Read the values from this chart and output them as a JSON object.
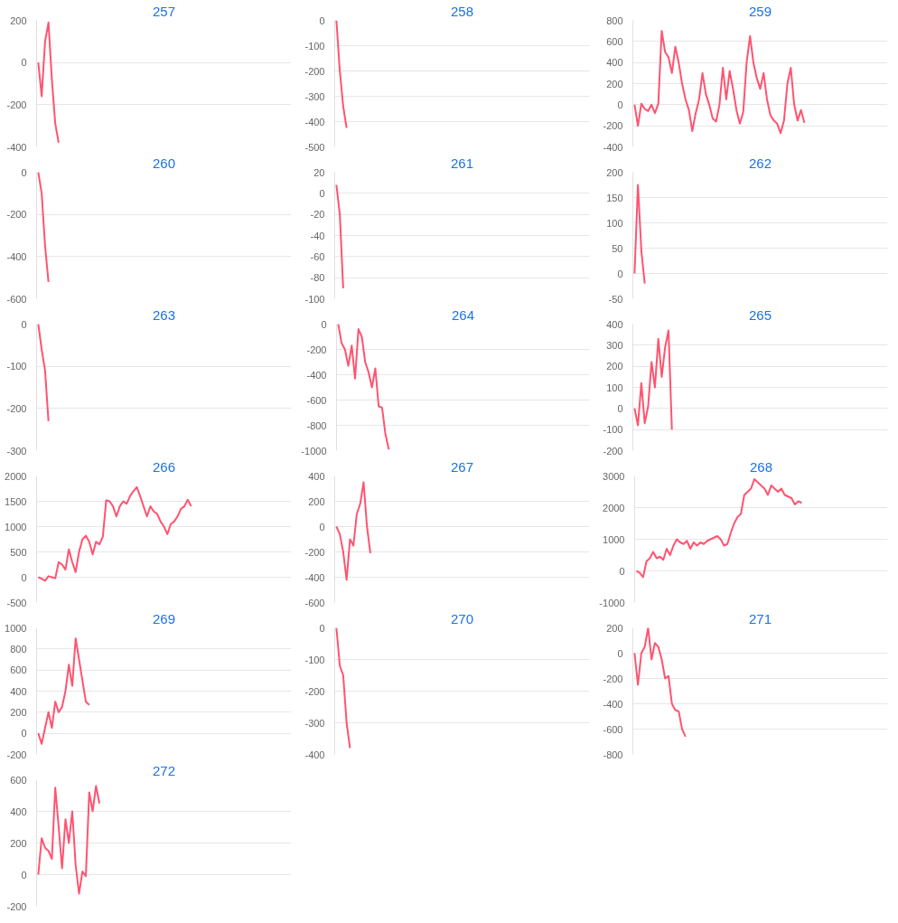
{
  "chart_data": [
    {
      "type": "line",
      "title": "257",
      "color": "#ff5470",
      "grid": "y",
      "tick_labels": "y",
      "ylim": [
        -400,
        200
      ],
      "yticks": [
        -400,
        -200,
        0,
        200
      ],
      "categories": [
        null,
        null,
        null,
        null,
        null,
        null,
        null,
        null,
        null,
        null,
        null,
        null,
        null,
        null,
        null,
        null,
        null,
        null,
        null,
        null,
        null,
        null,
        null,
        null,
        null,
        null,
        null,
        null,
        null,
        null,
        null,
        null,
        null,
        null,
        null,
        null,
        null,
        null,
        null,
        null,
        null,
        null,
        null,
        null,
        null,
        null,
        null,
        null,
        null,
        null,
        null,
        null,
        null,
        null,
        null,
        null,
        null,
        null,
        null,
        null,
        null,
        null,
        null,
        null,
        null,
        null,
        null,
        null,
        null,
        null,
        null,
        null,
        null,
        null,
        null
      ],
      "values": [
        0,
        -160,
        100,
        190,
        -80,
        -290,
        -380,
        null,
        null,
        null,
        null,
        null,
        null,
        null,
        null,
        null,
        null,
        null,
        null,
        null,
        null,
        null,
        null,
        null,
        null,
        null,
        null,
        null,
        null,
        null,
        null,
        null,
        null,
        null,
        null,
        null,
        null,
        null,
        null,
        null,
        null,
        null,
        null,
        null,
        null,
        null,
        null,
        null,
        null,
        null,
        null,
        null,
        null,
        null,
        null,
        null,
        null,
        null,
        null,
        null,
        null,
        null,
        null,
        null,
        null,
        null,
        null,
        null,
        null,
        null,
        null,
        null,
        null,
        null,
        null
      ]
    },
    {
      "type": "line",
      "title": "258",
      "color": "#ff5470",
      "grid": "y",
      "tick_labels": "y",
      "ylim": [
        -500,
        0
      ],
      "yticks": [
        -500,
        -400,
        -300,
        -200,
        -100,
        0
      ],
      "categories": [
        null,
        null,
        null,
        null,
        null,
        null,
        null,
        null,
        null,
        null,
        null,
        null,
        null,
        null,
        null,
        null,
        null,
        null,
        null,
        null,
        null,
        null,
        null,
        null,
        null,
        null,
        null,
        null,
        null,
        null,
        null,
        null,
        null,
        null,
        null,
        null,
        null,
        null,
        null,
        null,
        null,
        null,
        null,
        null,
        null,
        null,
        null,
        null,
        null,
        null,
        null,
        null,
        null,
        null,
        null,
        null,
        null,
        null,
        null,
        null,
        null,
        null,
        null,
        null,
        null,
        null,
        null,
        null,
        null,
        null,
        null,
        null,
        null,
        null,
        null
      ],
      "values": [
        0,
        -200,
        -340,
        -425,
        null,
        null,
        null,
        null,
        null,
        null,
        null,
        null,
        null,
        null,
        null,
        null,
        null,
        null,
        null,
        null,
        null,
        null,
        null,
        null,
        null,
        null,
        null,
        null,
        null,
        null,
        null,
        null,
        null,
        null,
        null,
        null,
        null,
        null,
        null,
        null,
        null,
        null,
        null,
        null,
        null,
        null,
        null,
        null,
        null,
        null,
        null,
        null,
        null,
        null,
        null,
        null,
        null,
        null,
        null,
        null,
        null,
        null,
        null,
        null,
        null,
        null,
        null,
        null,
        null,
        null,
        null,
        null,
        null,
        null,
        null
      ]
    },
    {
      "type": "line",
      "title": "259",
      "color": "#ff5470",
      "grid": "y",
      "tick_labels": "y",
      "ylim": [
        -400,
        800
      ],
      "yticks": [
        -400,
        -200,
        0,
        200,
        400,
        600,
        800
      ],
      "categories": [
        null,
        null,
        null,
        null,
        null,
        null,
        null,
        null,
        null,
        null,
        null,
        null,
        null,
        null,
        null,
        null,
        null,
        null,
        null,
        null,
        null,
        null,
        null,
        null,
        null,
        null,
        null,
        null,
        null,
        null,
        null,
        null,
        null,
        null,
        null,
        null,
        null,
        null,
        null,
        null,
        null,
        null,
        null,
        null,
        null,
        null,
        null,
        null,
        null,
        null,
        null,
        null,
        null,
        null,
        null,
        null,
        null,
        null,
        null,
        null,
        null,
        null,
        null,
        null,
        null,
        null,
        null,
        null,
        null,
        null,
        null,
        null,
        null,
        null,
        null
      ],
      "values": [
        0,
        -200,
        10,
        -40,
        -60,
        0,
        -80,
        10,
        700,
        500,
        450,
        300,
        550,
        400,
        200,
        50,
        -50,
        -250,
        -80,
        50,
        300,
        100,
        0,
        -130,
        -160,
        0,
        350,
        50,
        320,
        150,
        -50,
        -180,
        -70,
        400,
        650,
        400,
        250,
        150,
        300,
        50,
        -100,
        -150,
        -180,
        -270,
        -150,
        200,
        350,
        0,
        -150,
        -50,
        -170,
        null,
        null,
        null,
        null,
        null,
        null,
        null,
        null,
        null,
        null,
        null,
        null,
        null,
        null,
        null,
        null,
        null,
        null,
        null,
        null,
        null,
        null,
        null,
        null
      ]
    },
    {
      "type": "line",
      "title": "260",
      "color": "#ff5470",
      "grid": "y",
      "tick_labels": "y",
      "ylim": [
        -600,
        0
      ],
      "yticks": [
        -600,
        -400,
        -200,
        0
      ],
      "categories": [
        null,
        null,
        null,
        null,
        null,
        null,
        null,
        null,
        null,
        null,
        null,
        null,
        null,
        null,
        null,
        null,
        null,
        null,
        null,
        null,
        null,
        null,
        null,
        null,
        null,
        null,
        null,
        null,
        null,
        null,
        null,
        null,
        null,
        null,
        null,
        null,
        null,
        null,
        null,
        null,
        null,
        null,
        null,
        null,
        null,
        null,
        null,
        null,
        null,
        null,
        null,
        null,
        null,
        null,
        null,
        null,
        null,
        null,
        null,
        null,
        null,
        null,
        null,
        null,
        null,
        null,
        null,
        null,
        null,
        null,
        null,
        null,
        null,
        null,
        null
      ],
      "values": [
        0,
        -100,
        -350,
        -520,
        null,
        null,
        null,
        null,
        null,
        null,
        null,
        null,
        null,
        null,
        null,
        null,
        null,
        null,
        null,
        null,
        null,
        null,
        null,
        null,
        null,
        null,
        null,
        null,
        null,
        null,
        null,
        null,
        null,
        null,
        null,
        null,
        null,
        null,
        null,
        null,
        null,
        null,
        null,
        null,
        null,
        null,
        null,
        null,
        null,
        null,
        null,
        null,
        null,
        null,
        null,
        null,
        null,
        null,
        null,
        null,
        null,
        null,
        null,
        null,
        null,
        null,
        null,
        null,
        null,
        null,
        null,
        null,
        null,
        null,
        null
      ]
    },
    {
      "type": "line",
      "title": "261",
      "color": "#ff5470",
      "grid": "y",
      "tick_labels": "y",
      "ylim": [
        -100,
        20
      ],
      "yticks": [
        -100,
        -80,
        -60,
        -40,
        -20,
        0,
        20
      ],
      "categories": [
        null,
        null,
        null,
        null,
        null,
        null,
        null,
        null,
        null,
        null,
        null,
        null,
        null,
        null,
        null,
        null,
        null,
        null,
        null,
        null,
        null,
        null,
        null,
        null,
        null,
        null,
        null,
        null,
        null,
        null,
        null,
        null,
        null,
        null,
        null,
        null,
        null,
        null,
        null,
        null,
        null,
        null,
        null,
        null,
        null,
        null,
        null,
        null,
        null,
        null,
        null,
        null,
        null,
        null,
        null,
        null,
        null,
        null,
        null,
        null,
        null,
        null,
        null,
        null,
        null,
        null,
        null,
        null,
        null,
        null,
        null,
        null,
        null,
        null,
        null
      ],
      "values": [
        8,
        -20,
        -90,
        null,
        null,
        null,
        null,
        null,
        null,
        null,
        null,
        null,
        null,
        null,
        null,
        null,
        null,
        null,
        null,
        null,
        null,
        null,
        null,
        null,
        null,
        null,
        null,
        null,
        null,
        null,
        null,
        null,
        null,
        null,
        null,
        null,
        null,
        null,
        null,
        null,
        null,
        null,
        null,
        null,
        null,
        null,
        null,
        null,
        null,
        null,
        null,
        null,
        null,
        null,
        null,
        null,
        null,
        null,
        null,
        null,
        null,
        null,
        null,
        null,
        null,
        null,
        null,
        null,
        null,
        null,
        null,
        null,
        null,
        null,
        null
      ]
    },
    {
      "type": "line",
      "title": "262",
      "color": "#ff5470",
      "grid": "y",
      "tick_labels": "y",
      "ylim": [
        -50,
        200
      ],
      "yticks": [
        -50,
        0,
        50,
        100,
        150,
        200
      ],
      "categories": [
        null,
        null,
        null,
        null,
        null,
        null,
        null,
        null,
        null,
        null,
        null,
        null,
        null,
        null,
        null,
        null,
        null,
        null,
        null,
        null,
        null,
        null,
        null,
        null,
        null,
        null,
        null,
        null,
        null,
        null,
        null,
        null,
        null,
        null,
        null,
        null,
        null,
        null,
        null,
        null,
        null,
        null,
        null,
        null,
        null,
        null,
        null,
        null,
        null,
        null,
        null,
        null,
        null,
        null,
        null,
        null,
        null,
        null,
        null,
        null,
        null,
        null,
        null,
        null,
        null,
        null,
        null,
        null,
        null,
        null,
        null,
        null,
        null,
        null,
        null
      ],
      "values": [
        0,
        175,
        45,
        -20,
        null,
        null,
        null,
        null,
        null,
        null,
        null,
        null,
        null,
        null,
        null,
        null,
        null,
        null,
        null,
        null,
        null,
        null,
        null,
        null,
        null,
        null,
        null,
        null,
        null,
        null,
        null,
        null,
        null,
        null,
        null,
        null,
        null,
        null,
        null,
        null,
        null,
        null,
        null,
        null,
        null,
        null,
        null,
        null,
        null,
        null,
        null,
        null,
        null,
        null,
        null,
        null,
        null,
        null,
        null,
        null,
        null,
        null,
        null,
        null,
        null,
        null,
        null,
        null,
        null,
        null,
        null,
        null,
        null,
        null,
        null
      ]
    },
    {
      "type": "line",
      "title": "263",
      "color": "#ff5470",
      "grid": "y",
      "tick_labels": "y",
      "ylim": [
        -300,
        0
      ],
      "yticks": [
        -300,
        -200,
        -100,
        0
      ],
      "categories": [
        null,
        null,
        null,
        null,
        null,
        null,
        null,
        null,
        null,
        null,
        null,
        null,
        null,
        null,
        null,
        null,
        null,
        null,
        null,
        null,
        null,
        null,
        null,
        null,
        null,
        null,
        null,
        null,
        null,
        null,
        null,
        null,
        null,
        null,
        null,
        null,
        null,
        null,
        null,
        null,
        null,
        null,
        null,
        null,
        null,
        null,
        null,
        null,
        null,
        null,
        null,
        null,
        null,
        null,
        null,
        null,
        null,
        null,
        null,
        null,
        null,
        null,
        null,
        null,
        null,
        null,
        null,
        null,
        null,
        null,
        null,
        null,
        null,
        null,
        null
      ],
      "values": [
        0,
        -60,
        -110,
        -230,
        null,
        null,
        null,
        null,
        null,
        null,
        null,
        null,
        null,
        null,
        null,
        null,
        null,
        null,
        null,
        null,
        null,
        null,
        null,
        null,
        null,
        null,
        null,
        null,
        null,
        null,
        null,
        null,
        null,
        null,
        null,
        null,
        null,
        null,
        null,
        null,
        null,
        null,
        null,
        null,
        null,
        null,
        null,
        null,
        null,
        null,
        null,
        null,
        null,
        null,
        null,
        null,
        null,
        null,
        null,
        null,
        null,
        null,
        null,
        null,
        null,
        null,
        null,
        null,
        null,
        null,
        null,
        null,
        null,
        null,
        null
      ]
    },
    {
      "type": "line",
      "title": "264",
      "color": "#ff5470",
      "grid": "y",
      "tick_labels": "y",
      "ylim": [
        -1000,
        0
      ],
      "yticks": [
        -1000,
        -800,
        -600,
        -400,
        -200,
        0
      ],
      "categories": [
        null,
        null,
        null,
        null,
        null,
        null,
        null,
        null,
        null,
        null,
        null,
        null,
        null,
        null,
        null,
        null,
        null,
        null,
        null,
        null,
        null,
        null,
        null,
        null,
        null,
        null,
        null,
        null,
        null,
        null,
        null,
        null,
        null,
        null,
        null,
        null,
        null,
        null,
        null,
        null,
        null,
        null,
        null,
        null,
        null,
        null,
        null,
        null,
        null,
        null,
        null,
        null,
        null,
        null,
        null,
        null,
        null,
        null,
        null,
        null,
        null,
        null,
        null,
        null,
        null,
        null,
        null,
        null,
        null,
        null,
        null,
        null,
        null,
        null,
        null
      ],
      "values": [
        0,
        -150,
        -200,
        -330,
        -170,
        -430,
        -40,
        -100,
        -300,
        -380,
        -500,
        -350,
        -650,
        -660,
        -870,
        -990,
        null,
        null,
        null,
        null,
        null,
        null,
        null,
        null,
        null,
        null,
        null,
        null,
        null,
        null,
        null,
        null,
        null,
        null,
        null,
        null,
        null,
        null,
        null,
        null,
        null,
        null,
        null,
        null,
        null,
        null,
        null,
        null,
        null,
        null,
        null,
        null,
        null,
        null,
        null,
        null,
        null,
        null,
        null,
        null,
        null,
        null,
        null,
        null,
        null,
        null,
        null,
        null,
        null,
        null,
        null,
        null,
        null,
        null,
        null
      ]
    },
    {
      "type": "line",
      "title": "265",
      "color": "#ff5470",
      "grid": "y",
      "tick_labels": "y",
      "ylim": [
        -200,
        400
      ],
      "yticks": [
        -200,
        -100,
        0,
        100,
        200,
        300,
        400
      ],
      "categories": [
        null,
        null,
        null,
        null,
        null,
        null,
        null,
        null,
        null,
        null,
        null,
        null,
        null,
        null,
        null,
        null,
        null,
        null,
        null,
        null,
        null,
        null,
        null,
        null,
        null,
        null,
        null,
        null,
        null,
        null,
        null,
        null,
        null,
        null,
        null,
        null,
        null,
        null,
        null,
        null,
        null,
        null,
        null,
        null,
        null,
        null,
        null,
        null,
        null,
        null,
        null,
        null,
        null,
        null,
        null,
        null,
        null,
        null,
        null,
        null,
        null,
        null,
        null,
        null,
        null,
        null,
        null,
        null,
        null,
        null,
        null,
        null,
        null,
        null,
        null
      ],
      "values": [
        0,
        -80,
        120,
        -70,
        10,
        220,
        100,
        330,
        150,
        290,
        370,
        -100,
        null,
        null,
        null,
        null,
        null,
        null,
        null,
        null,
        null,
        null,
        null,
        null,
        null,
        null,
        null,
        null,
        null,
        null,
        null,
        null,
        null,
        null,
        null,
        null,
        null,
        null,
        null,
        null,
        null,
        null,
        null,
        null,
        null,
        null,
        null,
        null,
        null,
        null,
        null,
        null,
        null,
        null,
        null,
        null,
        null,
        null,
        null,
        null,
        null,
        null,
        null,
        null,
        null,
        null,
        null,
        null,
        null,
        null,
        null,
        null,
        null,
        null,
        null
      ]
    },
    {
      "type": "line",
      "title": "266",
      "color": "#ff5470",
      "grid": "y",
      "tick_labels": "y",
      "ylim": [
        -500,
        2000
      ],
      "yticks": [
        -500,
        0,
        500,
        1000,
        1500,
        2000
      ],
      "categories": [
        null,
        null,
        null,
        null,
        null,
        null,
        null,
        null,
        null,
        null,
        null,
        null,
        null,
        null,
        null,
        null,
        null,
        null,
        null,
        null,
        null,
        null,
        null,
        null,
        null,
        null,
        null,
        null,
        null,
        null,
        null,
        null,
        null,
        null,
        null,
        null,
        null,
        null,
        null,
        null,
        null,
        null,
        null,
        null,
        null,
        null,
        null,
        null,
        null,
        null,
        null,
        null,
        null,
        null,
        null,
        null,
        null,
        null,
        null,
        null,
        null,
        null,
        null,
        null,
        null,
        null,
        null,
        null,
        null,
        null,
        null,
        null,
        null,
        null,
        null
      ],
      "values": [
        0,
        -30,
        -70,
        20,
        0,
        -20,
        300,
        250,
        150,
        550,
        300,
        100,
        500,
        750,
        820,
        700,
        450,
        700,
        650,
        800,
        1520,
        1500,
        1400,
        1200,
        1400,
        1500,
        1450,
        1600,
        1700,
        1780,
        1600,
        1400,
        1200,
        1400,
        1300,
        1250,
        1100,
        1000,
        850,
        1050,
        1100,
        1200,
        1350,
        1400,
        1530,
        1400,
        null,
        null,
        null,
        null,
        null,
        null,
        null,
        null,
        null,
        null,
        null,
        null,
        null,
        null,
        null,
        null,
        null,
        null,
        null,
        null,
        null,
        null,
        null,
        null,
        null,
        null,
        null,
        null,
        null
      ]
    },
    {
      "type": "line",
      "title": "267",
      "color": "#ff5470",
      "grid": "y",
      "tick_labels": "y",
      "ylim": [
        -600,
        400
      ],
      "yticks": [
        -600,
        -400,
        -200,
        0,
        200,
        400
      ],
      "categories": [
        null,
        null,
        null,
        null,
        null,
        null,
        null,
        null,
        null,
        null,
        null,
        null,
        null,
        null,
        null,
        null,
        null,
        null,
        null,
        null,
        null,
        null,
        null,
        null,
        null,
        null,
        null,
        null,
        null,
        null,
        null,
        null,
        null,
        null,
        null,
        null,
        null,
        null,
        null,
        null,
        null,
        null,
        null,
        null,
        null,
        null,
        null,
        null,
        null,
        null,
        null,
        null,
        null,
        null,
        null,
        null,
        null,
        null,
        null,
        null,
        null,
        null,
        null,
        null,
        null,
        null,
        null,
        null,
        null,
        null,
        null,
        null,
        null,
        null,
        null
      ],
      "values": [
        0,
        -60,
        -200,
        -420,
        -100,
        -150,
        100,
        180,
        350,
        0,
        -210,
        null,
        null,
        null,
        null,
        null,
        null,
        null,
        null,
        null,
        null,
        null,
        null,
        null,
        null,
        null,
        null,
        null,
        null,
        null,
        null,
        null,
        null,
        null,
        null,
        null,
        null,
        null,
        null,
        null,
        null,
        null,
        null,
        null,
        null,
        null,
        null,
        null,
        null,
        null,
        null,
        null,
        null,
        null,
        null,
        null,
        null,
        null,
        null,
        null,
        null,
        null,
        null,
        null,
        null,
        null,
        null,
        null,
        null,
        null,
        null,
        null,
        null,
        null,
        null
      ]
    },
    {
      "type": "line",
      "title": "268",
      "color": "#ff5470",
      "grid": "y",
      "tick_labels": "y",
      "ylim": [
        -1000,
        3000
      ],
      "yticks": [
        -1000,
        0,
        1000,
        2000,
        3000
      ],
      "categories": [
        null,
        null,
        null,
        null,
        null,
        null,
        null,
        null,
        null,
        null,
        null,
        null,
        null,
        null,
        null,
        null,
        null,
        null,
        null,
        null,
        null,
        null,
        null,
        null,
        null,
        null,
        null,
        null,
        null,
        null,
        null,
        null,
        null,
        null,
        null,
        null,
        null,
        null,
        null,
        null,
        null,
        null,
        null,
        null,
        null,
        null,
        null,
        null,
        null,
        null,
        null,
        null,
        null,
        null,
        null,
        null,
        null,
        null,
        null,
        null,
        null,
        null,
        null,
        null,
        null,
        null,
        null,
        null,
        null,
        null,
        null,
        null,
        null,
        null,
        null
      ],
      "values": [
        0,
        -60,
        -200,
        300,
        400,
        600,
        400,
        450,
        350,
        700,
        500,
        800,
        1000,
        900,
        850,
        950,
        700,
        900,
        800,
        900,
        850,
        950,
        1000,
        1050,
        1100,
        1000,
        800,
        850,
        1200,
        1500,
        1700,
        1800,
        2400,
        2500,
        2600,
        2900,
        2800,
        2700,
        2600,
        2400,
        2700,
        2600,
        2500,
        2600,
        2400,
        2350,
        2300,
        2100,
        2200,
        2150,
        null,
        null,
        null,
        null,
        null,
        null,
        null,
        null,
        null,
        null,
        null,
        null,
        null,
        null,
        null,
        null,
        null,
        null,
        null,
        null,
        null,
        null,
        null,
        null,
        null
      ]
    },
    {
      "type": "line",
      "title": "269",
      "color": "#ff5470",
      "grid": "y",
      "tick_labels": "y",
      "ylim": [
        -200,
        1000
      ],
      "yticks": [
        -200,
        0,
        200,
        400,
        600,
        800,
        1000
      ],
      "categories": [
        null,
        null,
        null,
        null,
        null,
        null,
        null,
        null,
        null,
        null,
        null,
        null,
        null,
        null,
        null,
        null,
        null,
        null,
        null,
        null,
        null,
        null,
        null,
        null,
        null,
        null,
        null,
        null,
        null,
        null,
        null,
        null,
        null,
        null,
        null,
        null,
        null,
        null,
        null,
        null,
        null,
        null,
        null,
        null,
        null,
        null,
        null,
        null,
        null,
        null,
        null,
        null,
        null,
        null,
        null,
        null,
        null,
        null,
        null,
        null,
        null,
        null,
        null,
        null,
        null,
        null,
        null,
        null,
        null,
        null,
        null,
        null,
        null,
        null,
        null
      ],
      "values": [
        0,
        -100,
        50,
        200,
        50,
        300,
        200,
        250,
        400,
        650,
        450,
        900,
        700,
        500,
        300,
        270,
        null,
        null,
        null,
        null,
        null,
        null,
        null,
        null,
        null,
        null,
        null,
        null,
        null,
        null,
        null,
        null,
        null,
        null,
        null,
        null,
        null,
        null,
        null,
        null,
        null,
        null,
        null,
        null,
        null,
        null,
        null,
        null,
        null,
        null,
        null,
        null,
        null,
        null,
        null,
        null,
        null,
        null,
        null,
        null,
        null,
        null,
        null,
        null,
        null,
        null,
        null,
        null,
        null,
        null,
        null,
        null,
        null,
        null,
        null
      ]
    },
    {
      "type": "line",
      "title": "270",
      "color": "#ff5470",
      "grid": "y",
      "tick_labels": "y",
      "ylim": [
        -400,
        0
      ],
      "yticks": [
        -400,
        -300,
        -200,
        -100,
        0
      ],
      "categories": [
        null,
        null,
        null,
        null,
        null,
        null,
        null,
        null,
        null,
        null,
        null,
        null,
        null,
        null,
        null,
        null,
        null,
        null,
        null,
        null,
        null,
        null,
        null,
        null,
        null,
        null,
        null,
        null,
        null,
        null,
        null,
        null,
        null,
        null,
        null,
        null,
        null,
        null,
        null,
        null,
        null,
        null,
        null,
        null,
        null,
        null,
        null,
        null,
        null,
        null,
        null,
        null,
        null,
        null,
        null,
        null,
        null,
        null,
        null,
        null,
        null,
        null,
        null,
        null,
        null,
        null,
        null,
        null,
        null,
        null,
        null,
        null,
        null,
        null,
        null
      ],
      "values": [
        0,
        -120,
        -150,
        -300,
        -380,
        null,
        null,
        null,
        null,
        null,
        null,
        null,
        null,
        null,
        null,
        null,
        null,
        null,
        null,
        null,
        null,
        null,
        null,
        null,
        null,
        null,
        null,
        null,
        null,
        null,
        null,
        null,
        null,
        null,
        null,
        null,
        null,
        null,
        null,
        null,
        null,
        null,
        null,
        null,
        null,
        null,
        null,
        null,
        null,
        null,
        null,
        null,
        null,
        null,
        null,
        null,
        null,
        null,
        null,
        null,
        null,
        null,
        null,
        null,
        null,
        null,
        null,
        null,
        null,
        null,
        null,
        null,
        null,
        null,
        null
      ]
    },
    {
      "type": "line",
      "title": "271",
      "color": "#ff5470",
      "grid": "y",
      "tick_labels": "y",
      "ylim": [
        -800,
        200
      ],
      "yticks": [
        -800,
        -600,
        -400,
        -200,
        0,
        200
      ],
      "categories": [
        null,
        null,
        null,
        null,
        null,
        null,
        null,
        null,
        null,
        null,
        null,
        null,
        null,
        null,
        null,
        null,
        null,
        null,
        null,
        null,
        null,
        null,
        null,
        null,
        null,
        null,
        null,
        null,
        null,
        null,
        null,
        null,
        null,
        null,
        null,
        null,
        null,
        null,
        null,
        null,
        null,
        null,
        null,
        null,
        null,
        null,
        null,
        null,
        null,
        null,
        null,
        null,
        null,
        null,
        null,
        null,
        null,
        null,
        null,
        null,
        null,
        null,
        null,
        null,
        null,
        null,
        null,
        null,
        null,
        null,
        null,
        null,
        null,
        null,
        null
      ],
      "values": [
        0,
        -250,
        0,
        50,
        200,
        -50,
        80,
        50,
        -50,
        -200,
        -180,
        -400,
        -450,
        -460,
        -600,
        -660,
        null,
        null,
        null,
        null,
        null,
        null,
        null,
        null,
        null,
        null,
        null,
        null,
        null,
        null,
        null,
        null,
        null,
        null,
        null,
        null,
        null,
        null,
        null,
        null,
        null,
        null,
        null,
        null,
        null,
        null,
        null,
        null,
        null,
        null,
        null,
        null,
        null,
        null,
        null,
        null,
        null,
        null,
        null,
        null,
        null,
        null,
        null,
        null,
        null,
        null,
        null,
        null,
        null,
        null,
        null,
        null,
        null,
        null,
        null
      ]
    },
    {
      "type": "line",
      "title": "272",
      "color": "#ff5470",
      "grid": "y",
      "tick_labels": "y",
      "ylim": [
        -200,
        600
      ],
      "yticks": [
        -200,
        0,
        200,
        400,
        600
      ],
      "categories": [
        null,
        null,
        null,
        null,
        null,
        null,
        null,
        null,
        null,
        null,
        null,
        null,
        null,
        null,
        null,
        null,
        null,
        null,
        null,
        null,
        null,
        null,
        null,
        null,
        null,
        null,
        null,
        null,
        null,
        null,
        null,
        null,
        null,
        null,
        null,
        null,
        null,
        null,
        null,
        null,
        null,
        null,
        null,
        null,
        null,
        null,
        null,
        null,
        null,
        null,
        null,
        null,
        null,
        null,
        null,
        null,
        null,
        null,
        null,
        null,
        null,
        null,
        null,
        null,
        null,
        null,
        null,
        null,
        null,
        null,
        null,
        null,
        null,
        null,
        null
      ],
      "values": [
        0,
        230,
        170,
        150,
        100,
        550,
        300,
        40,
        350,
        200,
        400,
        60,
        -120,
        20,
        -10,
        520,
        400,
        560,
        450,
        null,
        null,
        null,
        null,
        null,
        null,
        null,
        null,
        null,
        null,
        null,
        null,
        null,
        null,
        null,
        null,
        null,
        null,
        null,
        null,
        null,
        null,
        null,
        null,
        null,
        null,
        null,
        null,
        null,
        null,
        null,
        null,
        null,
        null,
        null,
        null,
        null,
        null,
        null,
        null,
        null,
        null,
        null,
        null,
        null,
        null,
        null,
        null,
        null,
        null,
        null,
        null,
        null,
        null,
        null,
        null
      ]
    }
  ]
}
